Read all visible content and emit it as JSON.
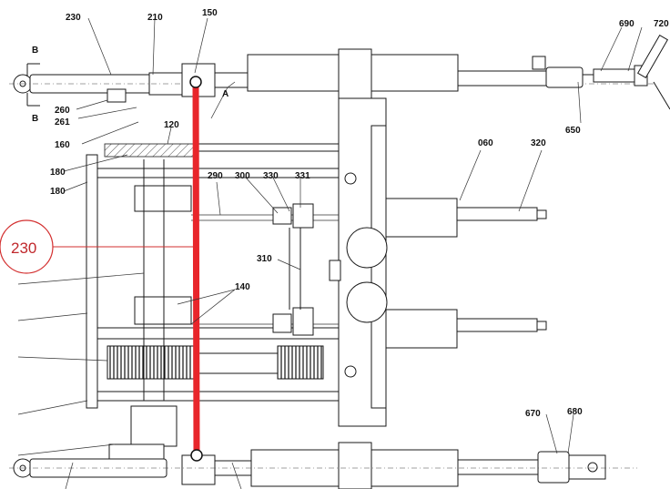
{
  "callout": {
    "label": "230",
    "color": "#d32f2f"
  },
  "rod_color": "#e8262b",
  "labels": {
    "l230": "230",
    "l210": "210",
    "l150": "150",
    "l690": "690",
    "l720": "720",
    "lB_top": "B",
    "lB_bot": "B",
    "lA": "A",
    "l260": "260",
    "l261": "261",
    "l160": "160",
    "l120": "120",
    "l180a": "180",
    "l180b": "180",
    "l650": "650",
    "l060": "060",
    "l320": "320",
    "l290": "290",
    "l300": "300",
    "l330": "330",
    "l331": "331",
    "l310": "310",
    "l140": "140",
    "l670": "670",
    "l680": "680"
  }
}
